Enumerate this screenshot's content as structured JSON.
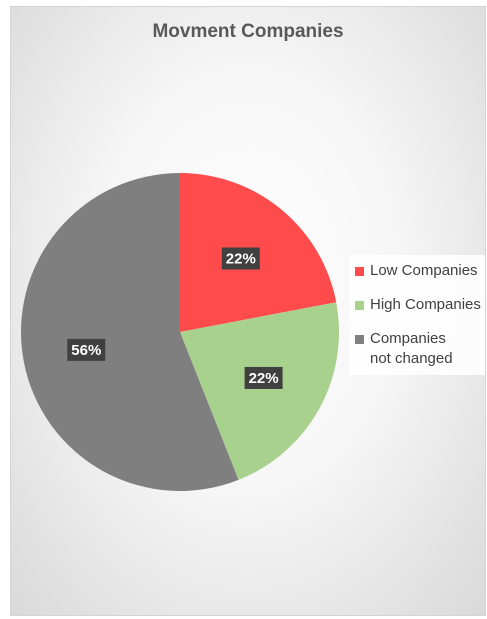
{
  "chart_data": {
    "type": "pie",
    "title": "Movment Companies",
    "categories": [
      "Low Companies",
      "High Companies",
      "Companies not changed"
    ],
    "values": [
      22,
      22,
      56
    ],
    "labels": [
      "22%",
      "22%",
      "56%"
    ],
    "colors": [
      "#ff4b4b",
      "#a9d18e",
      "#7f7f7f"
    ],
    "legend_position": "right",
    "start_angle_deg": 0,
    "direction": "clockwise"
  }
}
